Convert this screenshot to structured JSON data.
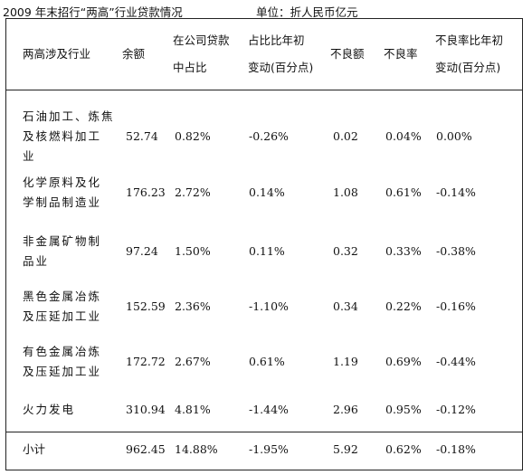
{
  "title": "2009 年末招行“两高”行业贷款情况",
  "unit": "单位：折人民币亿元",
  "headers": {
    "industry": "两高涉及行业",
    "balance": "余额",
    "share_l1": "在公司贷款",
    "share_l2": "中占比",
    "share_chg_l1": "占比比年初",
    "share_chg_l2": "变动(百分点)",
    "npl": "不良额",
    "npl_ratio": "不良率",
    "npl_chg_l1": "不良率比年初",
    "npl_chg_l2": "变动(百分点)"
  },
  "rows": [
    {
      "industry_l1": "石油加工、炼焦",
      "industry_l2": "及核燃料加工",
      "industry_l3": "业",
      "balance": "52.74",
      "share": "0.82%",
      "share_chg": "-0.26%",
      "npl": "0.02",
      "npl_ratio": "0.04%",
      "npl_chg": "0.00%"
    },
    {
      "industry_l1": "化学原料及化",
      "industry_l2": "学制品制造业",
      "industry_l3": "",
      "balance": "176.23",
      "share": "2.72%",
      "share_chg": "0.14%",
      "npl": "1.08",
      "npl_ratio": "0.61%",
      "npl_chg": "-0.14%"
    },
    {
      "industry_l1": "非金属矿物制",
      "industry_l2": "品业",
      "industry_l3": "",
      "balance": "97.24",
      "share": "1.50%",
      "share_chg": "0.11%",
      "npl": "0.32",
      "npl_ratio": "0.33%",
      "npl_chg": "-0.38%"
    },
    {
      "industry_l1": "黑色金属冶炼",
      "industry_l2": "及压延加工业",
      "industry_l3": "",
      "balance": "152.59",
      "share": "2.36%",
      "share_chg": "-1.10%",
      "npl": "0.34",
      "npl_ratio": "0.22%",
      "npl_chg": "-0.16%"
    },
    {
      "industry_l1": "有色金属冶炼",
      "industry_l2": "及压延加工业",
      "industry_l3": "",
      "balance": "172.72",
      "share": "2.67%",
      "share_chg": "0.61%",
      "npl": "1.19",
      "npl_ratio": "0.69%",
      "npl_chg": "-0.44%"
    },
    {
      "industry_l1": "火力发电",
      "industry_l2": "",
      "industry_l3": "",
      "balance": "310.94",
      "share": "4.81%",
      "share_chg": "-1.44%",
      "npl": "2.96",
      "npl_ratio": "0.95%",
      "npl_chg": "-0.12%"
    }
  ],
  "total": {
    "label": "小计",
    "balance": "962.45",
    "share": "14.88%",
    "share_chg": "-1.95%",
    "npl": "5.92",
    "npl_ratio": "0.62%",
    "npl_chg": "-0.18%"
  }
}
